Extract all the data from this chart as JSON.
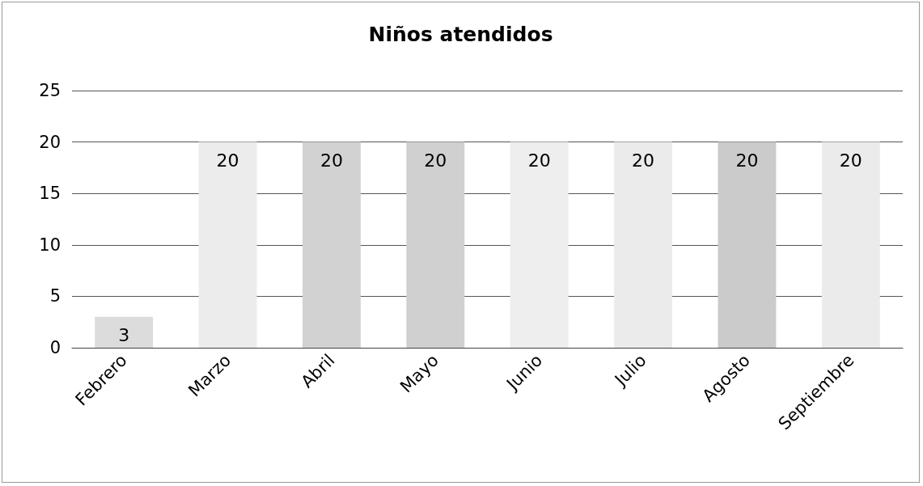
{
  "chart_data": {
    "type": "bar",
    "title": "Niños atendidos",
    "categories": [
      "Febrero",
      "Marzo",
      "Abril",
      "Mayo",
      "Junio",
      "Julio",
      "Agosto",
      "Septiembre"
    ],
    "values": [
      3,
      20,
      20,
      20,
      20,
      20,
      20,
      20
    ],
    "colors": [
      "#dcdcdc",
      "#ececec",
      "#d2d2d2",
      "#d0d0d0",
      "#eeeeee",
      "#ebebeb",
      "#cbcbcb",
      "#ebebeb"
    ],
    "ylim": [
      0,
      25
    ],
    "yticks": [
      0,
      5,
      10,
      15,
      20,
      25
    ],
    "grid": "y",
    "data_labels": true
  }
}
